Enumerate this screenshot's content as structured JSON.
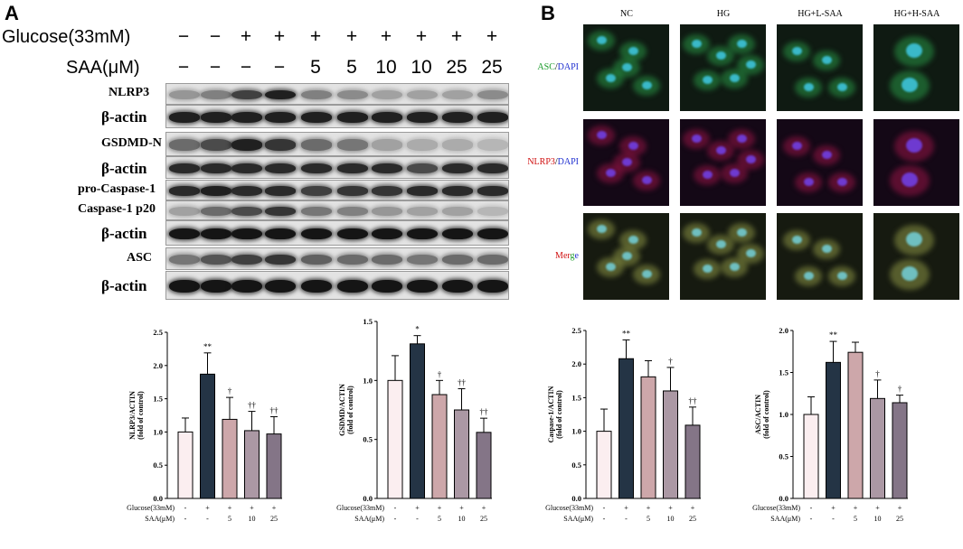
{
  "panel_a": {
    "letter": "A",
    "conditions": [
      {
        "label": "Glucose(33mM)",
        "values": [
          "−",
          "−",
          "+",
          "+",
          "+",
          "+",
          "+",
          "+",
          "+",
          "+"
        ]
      },
      {
        "label": "SAA(μM)",
        "values": [
          "−",
          "−",
          "−",
          "−",
          "5",
          "5",
          "10",
          "10",
          "25",
          "25"
        ]
      }
    ],
    "blots": [
      {
        "label": "NLRP3",
        "intensity": [
          0.35,
          0.45,
          0.75,
          0.9,
          0.45,
          0.4,
          0.3,
          0.3,
          0.3,
          0.4
        ]
      },
      {
        "label": "β-actin",
        "intensity": [
          0.9,
          0.9,
          0.9,
          0.9,
          0.9,
          0.9,
          0.9,
          0.9,
          0.9,
          0.9
        ]
      },
      {
        "label": "GSDMD-N",
        "intensity": [
          0.55,
          0.7,
          0.9,
          0.8,
          0.55,
          0.5,
          0.3,
          0.25,
          0.25,
          0.2
        ]
      },
      {
        "label": "β-actin",
        "intensity": [
          0.85,
          0.85,
          0.85,
          0.85,
          0.85,
          0.85,
          0.85,
          0.7,
          0.85,
          0.85
        ]
      },
      {
        "label": "pro-Caspase-1",
        "intensity": [
          0.85,
          0.9,
          0.85,
          0.85,
          0.75,
          0.8,
          0.8,
          0.85,
          0.85,
          0.85
        ]
      },
      {
        "label": "Caspase-1 p20",
        "intensity": [
          0.3,
          0.55,
          0.7,
          0.8,
          0.5,
          0.45,
          0.35,
          0.3,
          0.3,
          0.2
        ]
      },
      {
        "label": "β-actin",
        "intensity": [
          0.95,
          0.95,
          0.95,
          0.95,
          0.95,
          0.95,
          0.95,
          0.95,
          0.95,
          0.95
        ]
      },
      {
        "label": "ASC",
        "intensity": [
          0.5,
          0.65,
          0.75,
          0.8,
          0.6,
          0.55,
          0.55,
          0.5,
          0.55,
          0.55
        ]
      },
      {
        "label": "β-actin",
        "intensity": [
          0.95,
          0.95,
          0.95,
          0.95,
          0.95,
          0.95,
          0.95,
          0.95,
          0.95,
          0.95
        ]
      }
    ]
  },
  "panel_b": {
    "letter": "B",
    "columns": [
      "NC",
      "HG",
      "HG+L-SAA",
      "HG+H-SAA"
    ],
    "rows": [
      {
        "parts": [
          {
            "text": "ASC",
            "color": "#1a9a2a"
          },
          {
            "text": "/",
            "color": "#000000"
          },
          {
            "text": "DAPI",
            "color": "#2030d0"
          }
        ],
        "kind": "asc"
      },
      {
        "parts": [
          {
            "text": "NLRP3",
            "color": "#d01010"
          },
          {
            "text": "/",
            "color": "#000000"
          },
          {
            "text": "DAPI",
            "color": "#2030d0"
          }
        ],
        "kind": "nlrp3"
      },
      {
        "parts": [
          {
            "text": "M",
            "color": "#d01010"
          },
          {
            "text": "er",
            "color": "#d01010"
          },
          {
            "text": "g",
            "color": "#1a9a2a"
          },
          {
            "text": "e",
            "color": "#2030d0"
          }
        ],
        "kind": "merge"
      }
    ]
  },
  "chart_data": [
    {
      "type": "bar",
      "ylabel": "NLRP3/ACTIN",
      "ylabel2": "(fold of control)",
      "ylim": [
        0,
        2.5
      ],
      "yticks": [
        "0.0",
        "0.5",
        "1.0",
        "1.5",
        "2.0",
        "2.5"
      ],
      "values": [
        1.0,
        1.87,
        1.19,
        1.02,
        0.97
      ],
      "errors": [
        0.21,
        0.32,
        0.33,
        0.29,
        0.26
      ],
      "annotations": [
        "",
        "**",
        "†",
        "††",
        "††"
      ],
      "rows": [
        {
          "label": "Glucose(33mM)",
          "values": [
            "-",
            "+",
            "+",
            "+",
            "+"
          ]
        },
        {
          "label": "SAA(μM)",
          "values": [
            "-",
            "-",
            "5",
            "10",
            "25"
          ]
        }
      ]
    },
    {
      "type": "bar",
      "ylabel": "GSDMD/ACTIN",
      "ylabel2": "(fold of control)",
      "ylim": [
        0,
        1.5
      ],
      "yticks": [
        "0.0",
        "0.5",
        "1.0",
        "1.5"
      ],
      "values": [
        1.0,
        1.31,
        0.88,
        0.75,
        0.56
      ],
      "errors": [
        0.21,
        0.07,
        0.12,
        0.18,
        0.12
      ],
      "annotations": [
        "",
        "*",
        "†",
        "††",
        "††"
      ],
      "rows": [
        {
          "label": "Glucose(33mM)",
          "values": [
            "-",
            "+",
            "+",
            "+",
            "+"
          ]
        },
        {
          "label": "SAA(μM)",
          "values": [
            "-",
            "-",
            "5",
            "10",
            "25"
          ]
        }
      ]
    },
    {
      "type": "bar",
      "ylabel": "Caspase-1/ACTIN",
      "ylabel2": "(fold of control)",
      "ylim": [
        0,
        2.5
      ],
      "yticks": [
        "0.0",
        "0.5",
        "1.0",
        "1.5",
        "2.0",
        "2.5"
      ],
      "values": [
        1.0,
        2.08,
        1.81,
        1.6,
        1.09
      ],
      "errors": [
        0.33,
        0.28,
        0.24,
        0.35,
        0.27
      ],
      "annotations": [
        "",
        "**",
        "",
        "†",
        "††"
      ],
      "rows": [
        {
          "label": "Glucose(33mM)",
          "values": [
            "-",
            "+",
            "+",
            "+",
            "+"
          ]
        },
        {
          "label": "SAA(μM)",
          "values": [
            "-",
            "-",
            "5",
            "10",
            "25"
          ]
        }
      ]
    },
    {
      "type": "bar",
      "ylabel": "ASC/ACTIN",
      "ylabel2": "(fold of control)",
      "ylim": [
        0,
        2.0
      ],
      "yticks": [
        "0.0",
        "0.5",
        "1.0",
        "1.5",
        "2.0"
      ],
      "values": [
        1.0,
        1.62,
        1.74,
        1.19,
        1.14
      ],
      "errors": [
        0.21,
        0.25,
        0.12,
        0.22,
        0.09
      ],
      "annotations": [
        "",
        "**",
        "",
        "†",
        "†"
      ],
      "rows": [
        {
          "label": "Glucose(33mM)",
          "values": [
            "-",
            "+",
            "+",
            "+",
            "+"
          ]
        },
        {
          "label": "SAA(μM)",
          "values": [
            "-",
            "-",
            "5",
            "10",
            "25"
          ]
        }
      ]
    }
  ],
  "colors": {
    "bars": [
      "#fbeef0",
      "#243445",
      "#cda7aa",
      "#ab98a4",
      "#847587"
    ]
  }
}
